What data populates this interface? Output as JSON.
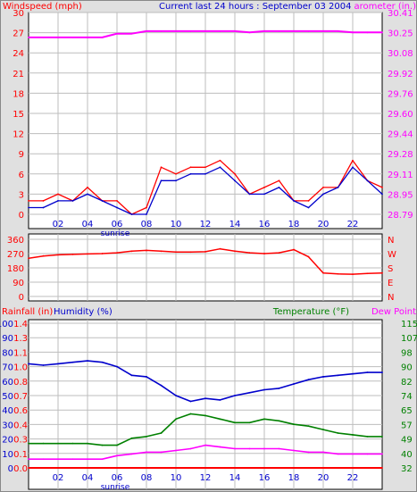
{
  "header": {
    "title": "Current last 24 hours : September 03 2004",
    "left_label": "Windspeed (mph)",
    "right_label": "arometer (in.)"
  },
  "colors": {
    "wind": "#ff0000",
    "wind_avg": "#0000cc",
    "barometer": "#ff00ff",
    "direction": "#ff0000",
    "rain": "#ff0000",
    "humidity": "#0000cc",
    "temperature": "#008000",
    "dewpoint": "#ff00ff",
    "title": "#0000cc",
    "plot_bg": "#ffffff",
    "page_bg": "#e0e0e0"
  },
  "x_axis": {
    "ticks": [
      "02",
      "04",
      "06",
      "08",
      "10",
      "12",
      "14",
      "16",
      "18",
      "20",
      "22"
    ],
    "sunrise_label": "sunrise"
  },
  "chart_data": [
    {
      "type": "line",
      "panel": "wind",
      "left_axis": {
        "label": "Windspeed (mph)",
        "range": [
          0,
          30
        ],
        "ticks": [
          "0",
          "3",
          "6",
          "9",
          "12",
          "15",
          "18",
          "21",
          "24",
          "27",
          "30"
        ]
      },
      "right_axis": {
        "label": "arometer (in.)",
        "range": [
          28.79,
          30.41
        ],
        "ticks": [
          "28.79",
          "28.95",
          "29.11",
          "29.28",
          "29.44",
          "29.60",
          "29.76",
          "29.92",
          "30.08",
          "30.25",
          "30.41"
        ]
      },
      "x_hours": [
        0,
        1,
        2,
        3,
        4,
        5,
        6,
        7,
        8,
        9,
        10,
        11,
        12,
        13,
        14,
        15,
        16,
        17,
        18,
        19,
        20,
        21,
        22,
        23,
        24
      ],
      "series": [
        {
          "name": "Windspeed",
          "axis": "left",
          "values": [
            2,
            2,
            3,
            2,
            4,
            2,
            2,
            0,
            1,
            7,
            6,
            7,
            7,
            8,
            6,
            3,
            4,
            5,
            2,
            2,
            4,
            4,
            8,
            5,
            4
          ]
        },
        {
          "name": "Avg",
          "axis": "left",
          "values": [
            1,
            1,
            2,
            2,
            3,
            2,
            1,
            0,
            0,
            5,
            5,
            6,
            6,
            7,
            5,
            3,
            3,
            4,
            2,
            1,
            3,
            4,
            7,
            5,
            3
          ]
        },
        {
          "name": "Barometer",
          "axis": "right",
          "values": [
            30.21,
            30.21,
            30.21,
            30.21,
            30.21,
            30.21,
            30.24,
            30.24,
            30.26,
            30.26,
            30.26,
            30.26,
            30.26,
            30.26,
            30.26,
            30.25,
            30.26,
            30.26,
            30.26,
            30.26,
            30.26,
            30.26,
            30.25,
            30.25,
            30.25
          ]
        }
      ]
    },
    {
      "type": "line",
      "panel": "direction",
      "left_axis": {
        "range": [
          0,
          360
        ],
        "ticks": [
          "0",
          "90",
          "180",
          "270",
          "360"
        ]
      },
      "right_axis": {
        "ticks": [
          "N",
          "E",
          "S",
          "W",
          "N"
        ]
      },
      "x_hours": [
        0,
        1,
        2,
        3,
        4,
        5,
        6,
        7,
        8,
        9,
        10,
        11,
        12,
        13,
        14,
        15,
        16,
        17,
        18,
        19,
        20,
        21,
        22,
        23,
        24
      ],
      "series": [
        {
          "name": "Wind direction",
          "values": [
            240,
            255,
            262,
            265,
            268,
            270,
            275,
            285,
            290,
            285,
            280,
            280,
            282,
            300,
            285,
            275,
            270,
            275,
            295,
            250,
            148,
            142,
            140,
            145,
            148
          ]
        }
      ]
    },
    {
      "type": "line",
      "panel": "climate",
      "left_axis_rain": {
        "label": "Rainfall (in)",
        "range": [
          0,
          1.4
        ],
        "ticks": [
          "0.0",
          "0.1",
          "0.3",
          "0.4",
          "0.6",
          "0.7",
          "0.8",
          "1.0",
          "1.1",
          "1.3",
          "1.4"
        ]
      },
      "left_axis_humidity": {
        "label": "Humidity (%)",
        "range": [
          0,
          100
        ],
        "ticks": [
          "0",
          "10",
          "20",
          "30",
          "40",
          "50",
          "60",
          "70",
          "80",
          "90",
          "100"
        ]
      },
      "right_axis": {
        "label": "Temperature (°F)",
        "range": [
          32,
          115
        ],
        "ticks": [
          "32",
          "40",
          "49",
          "57",
          "65",
          "74",
          "82",
          "90",
          "98",
          "107",
          "115"
        ]
      },
      "legend": [
        "Temperature (°F)",
        "Dew Point"
      ],
      "x_hours": [
        0,
        1,
        2,
        3,
        4,
        5,
        6,
        7,
        8,
        9,
        10,
        11,
        12,
        13,
        14,
        15,
        16,
        17,
        18,
        19,
        20,
        21,
        22,
        23,
        24
      ],
      "series": [
        {
          "name": "Humidity",
          "axis": "humidity",
          "values": [
            72,
            71,
            72,
            73,
            74,
            73,
            70,
            64,
            63,
            57,
            50,
            46,
            48,
            47,
            50,
            52,
            54,
            55,
            58,
            61,
            63,
            64,
            65,
            66,
            66
          ]
        },
        {
          "name": "Temperature",
          "axis": "temperature",
          "values": [
            46,
            46,
            46,
            46,
            46,
            45,
            45,
            49,
            50,
            52,
            60,
            63,
            62,
            60,
            58,
            58,
            60,
            59,
            57,
            56,
            54,
            52,
            51,
            50,
            50
          ]
        },
        {
          "name": "Dew Point",
          "axis": "temperature",
          "values": [
            37,
            37,
            37,
            37,
            37,
            37,
            39,
            40,
            41,
            41,
            42,
            43,
            45,
            44,
            43,
            43,
            43,
            43,
            42,
            41,
            41,
            40,
            40,
            40,
            40
          ]
        },
        {
          "name": "Rainfall",
          "axis": "rain",
          "values": [
            0,
            0,
            0,
            0,
            0,
            0,
            0,
            0,
            0,
            0,
            0,
            0,
            0,
            0,
            0,
            0,
            0,
            0,
            0,
            0,
            0,
            0,
            0,
            0,
            0
          ]
        }
      ]
    }
  ]
}
